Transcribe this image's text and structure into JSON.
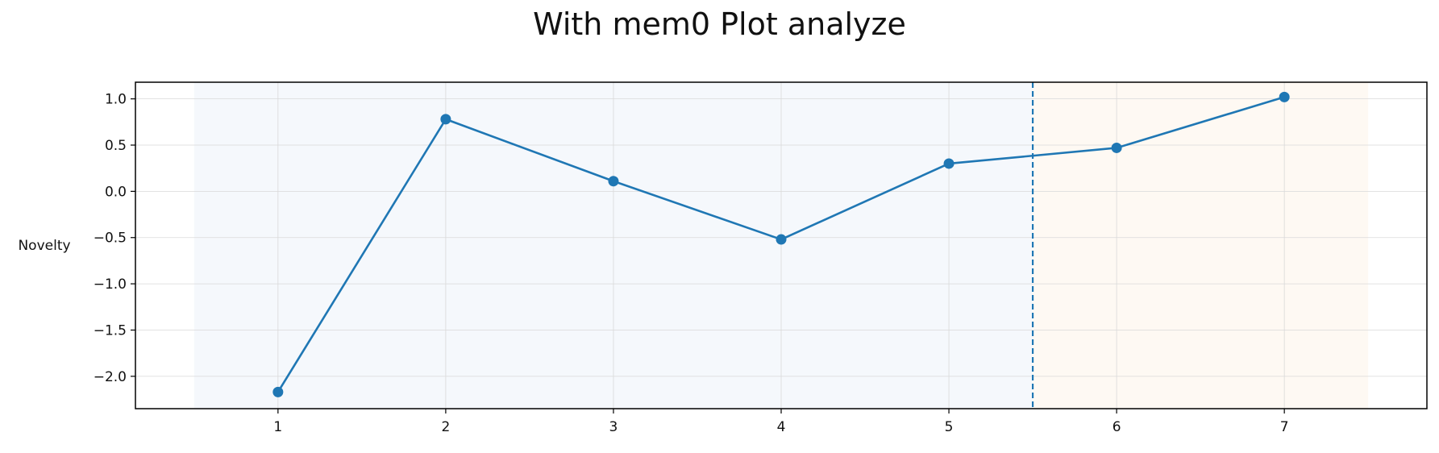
{
  "chart_data": {
    "type": "line",
    "title": "With mem0 Plot analyze",
    "xlabel": "",
    "ylabel": "Novelty",
    "x": [
      1,
      2,
      3,
      4,
      5,
      6,
      7
    ],
    "series": [
      {
        "values": [
          -2.17,
          0.78,
          0.11,
          -0.52,
          0.3,
          0.47,
          1.02
        ]
      }
    ],
    "xticks": [
      "1",
      "2",
      "3",
      "4",
      "5",
      "6",
      "7"
    ],
    "yticks": [
      "1.0",
      "0.5",
      "0.0",
      "−0.5",
      "−1.0",
      "−1.5",
      "−2.0"
    ],
    "xlim": [
      0.15,
      7.85
    ],
    "ylim": [
      -2.35,
      1.18
    ],
    "grid": true,
    "regions": [
      {
        "from": 0.5,
        "to": 5.5,
        "color": "#f5f8fc"
      },
      {
        "from": 5.5,
        "to": 7.5,
        "color": "#fef9f3"
      }
    ],
    "divider_x": 5.5,
    "line_color": "#1f77b4"
  }
}
